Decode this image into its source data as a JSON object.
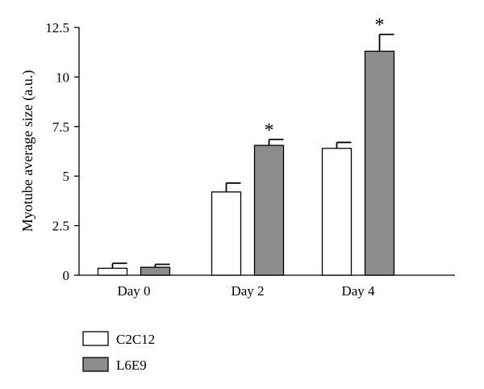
{
  "chart_data": {
    "type": "bar",
    "ylabel": "Myotube average size (a.u.)",
    "xlabel": "",
    "ylim": [
      0,
      12.5
    ],
    "y_ticks": [
      0,
      2.5,
      5,
      7.5,
      10,
      12.5
    ],
    "y_tick_labels": [
      "0",
      "2.5",
      "5",
      "7.5",
      "10",
      "12.5"
    ],
    "categories": [
      "Day 0",
      "Day 2",
      "Day 4"
    ],
    "series": [
      {
        "name": "C2C12",
        "color": "#ffffff",
        "values": [
          0.35,
          4.2,
          6.4
        ],
        "errors": [
          0.25,
          0.45,
          0.3
        ],
        "annotations": [
          "",
          "",
          ""
        ]
      },
      {
        "name": "L6E9",
        "color": "#8c8c8c",
        "values": [
          0.4,
          6.55,
          11.3
        ],
        "errors": [
          0.15,
          0.3,
          0.85
        ],
        "annotations": [
          "",
          "*",
          "*"
        ]
      }
    ],
    "legend": {
      "placement": "bottom-left"
    },
    "grid": false
  }
}
